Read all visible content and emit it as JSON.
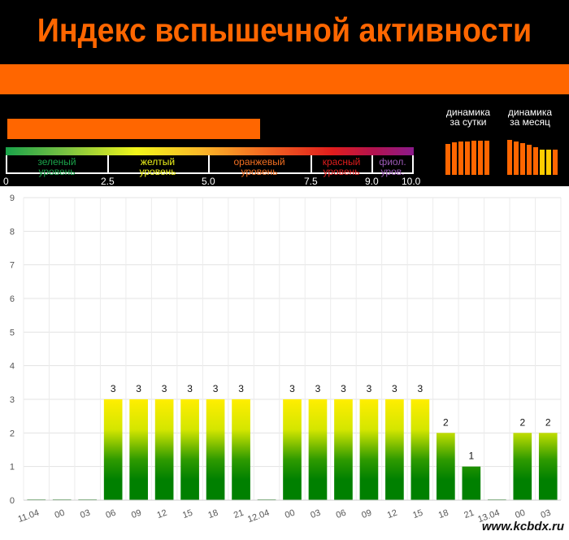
{
  "header": {
    "title": "Индекс вспышечной активности",
    "index_level": 0.62
  },
  "scale": {
    "segments": [
      {
        "line1": "зеленый",
        "line2": "уровень",
        "color": "#1aa34a"
      },
      {
        "line1": "желтый",
        "line2": "уровень",
        "color": "#f1f51a"
      },
      {
        "line1": "оранжевый",
        "line2": "уровень",
        "color": "#f36f21"
      },
      {
        "line1": "красный",
        "line2": "уровень",
        "color": "#e11d1d"
      },
      {
        "line1": "фиол.",
        "line2": "уров.",
        "color": "#9b59b6"
      }
    ],
    "ticks": [
      "0",
      "2.5",
      "5.0",
      "7.5",
      "9.0",
      "10.0"
    ]
  },
  "dynamics": {
    "day": {
      "line1": "динамика",
      "line2": "за сутки",
      "levels": [
        0.88,
        0.92,
        0.95,
        0.95,
        0.97,
        0.97,
        0.97
      ]
    },
    "month": {
      "line1": "динамика",
      "line2": "за месяц",
      "levels": [
        1.0,
        0.95,
        0.9,
        0.85,
        0.8,
        0.72,
        0.72,
        0.72
      ]
    },
    "bar_color": "#ff6600",
    "highlight_color": "#ffcc00"
  },
  "watermark": "www.kcbdx.ru",
  "chart_data": {
    "type": "bar",
    "categories": [
      "11.04",
      "00",
      "03",
      "06",
      "09",
      "12",
      "15",
      "18",
      "21",
      "12.04",
      "00",
      "03",
      "06",
      "09",
      "12",
      "15",
      "18",
      "21",
      "13.04",
      "00",
      "03"
    ],
    "values": [
      0,
      0,
      0,
      3,
      3,
      3,
      3,
      3,
      3,
      0,
      3,
      3,
      3,
      3,
      3,
      3,
      2,
      1,
      0,
      2,
      2
    ],
    "ylim": [
      0,
      9
    ],
    "yticks": [
      "0",
      "1",
      "2",
      "3",
      "4",
      "5",
      "6",
      "7",
      "8",
      "9"
    ],
    "grid": true,
    "colors": {
      "top": "#ffee00",
      "bottom": "#008000"
    }
  }
}
